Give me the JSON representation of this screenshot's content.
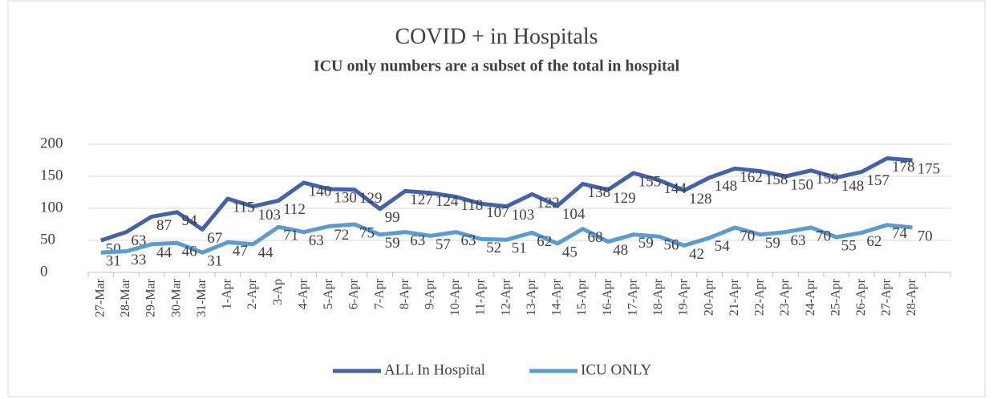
{
  "chart_data": {
    "type": "line",
    "title": "COVID + in Hospitals",
    "subtitle": "ICU only numbers are a subset of the total in hospital",
    "categories": [
      "27-Mar",
      "28-Mar",
      "29-Mar",
      "30-Mar",
      "31-Mar",
      "1-Apr",
      "2-Apr",
      "3-Ap",
      "4-Apr",
      "5-Apr",
      "6-Apr",
      "7-Apr",
      "8-Apr",
      "9-Apr",
      "10-Apr",
      "11-Apr",
      "12-Apr",
      "13-Apr",
      "14-Apr",
      "15-Apr",
      "16-Apr",
      "17-Apr",
      "18-Apr",
      "19-Apr",
      "20-Apr",
      "21-Apr",
      "22-Apr",
      "23-Apr",
      "24-Apr",
      "25-Apr",
      "26-Apr",
      "27-Apr",
      "28-Apr",
      null
    ],
    "series": [
      {
        "name": "ALL In Hospital",
        "color": "#4263ab",
        "values": [
          50,
          63,
          87,
          94,
          67,
          115,
          103,
          112,
          140,
          130,
          129,
          99,
          127,
          124,
          118,
          107,
          103,
          122,
          104,
          138,
          129,
          155,
          144,
          128,
          148,
          162,
          158,
          150,
          159,
          148,
          157,
          178,
          175,
          null
        ]
      },
      {
        "name": "ICU ONLY",
        "color": "#5b9bd5",
        "values": [
          31,
          33,
          44,
          46,
          31,
          47,
          44,
          71,
          63,
          72,
          75,
          59,
          63,
          57,
          63,
          52,
          51,
          62,
          45,
          68,
          48,
          59,
          56,
          42,
          54,
          70,
          59,
          63,
          70,
          55,
          62,
          74,
          70,
          null
        ]
      }
    ],
    "ylim": [
      0,
      200
    ],
    "yticks": [
      0,
      50,
      100,
      150,
      200
    ],
    "grid": true,
    "legend": "bottom"
  }
}
